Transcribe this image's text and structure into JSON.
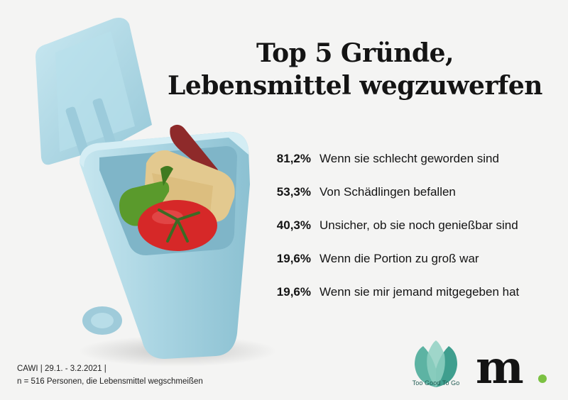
{
  "title": {
    "line1": "Top 5 Gründe,",
    "line2": "Lebensmittel wegzuwerfen"
  },
  "chart_data": {
    "type": "table",
    "title": "Top 5 Gründe, Lebensmittel wegzuwerfen",
    "rows": [
      {
        "value": "81,2%",
        "label": "Wenn sie schlecht geworden sind"
      },
      {
        "value": "53,3%",
        "label": "Von Schädlingen befallen"
      },
      {
        "value": "40,3%",
        "label": "Unsicher, ob sie noch genießbar sind"
      },
      {
        "value": "19,6%",
        "label": "Wenn die Portion zu groß war"
      },
      {
        "value": "19,6%",
        "label": "Wenn sie mir jemand mitgegeben hat"
      }
    ]
  },
  "source": {
    "line1": "CAWI | 29.1. - 3.2.2021 |",
    "line2": "n = 516 Personen, die Lebensmittel wegschmeißen"
  },
  "logos": {
    "tgtg_label": "Too Good To Go",
    "m_letter": "m."
  },
  "colors": {
    "bin": "#a9d4e2",
    "tgtg": "#3f9e8e",
    "m_dot": "#7bc142"
  },
  "icons": [
    "trash-bin-illustration",
    "tgtg-leaf-logo",
    "m-brand-logo"
  ]
}
